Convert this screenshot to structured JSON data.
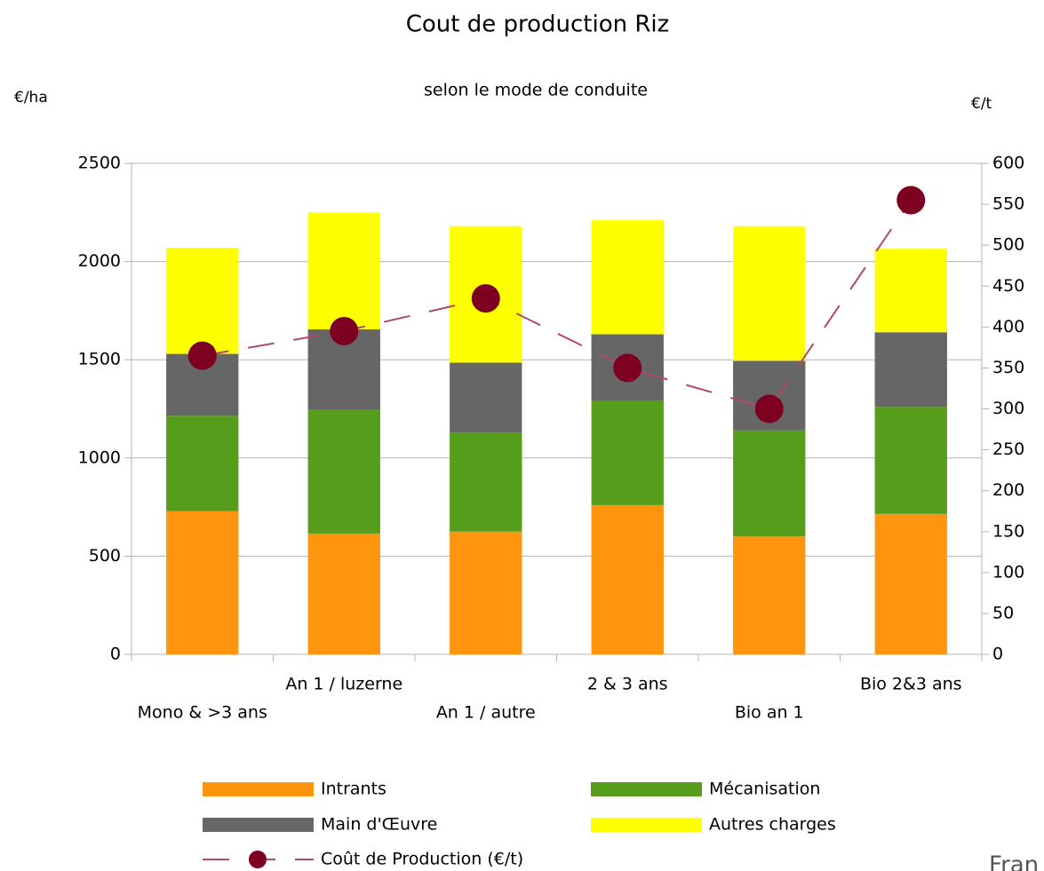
{
  "chart_data": {
    "type": "bar",
    "stacked": true,
    "title": "Cout de production  Riz",
    "subtitle": "selon le mode de conduite",
    "ylabel": "€/ha",
    "y2label": "€/t",
    "categories": [
      "Mono & >3 ans",
      "An 1 / luzerne",
      "An 1 / autre",
      "2 & 3 ans",
      "Bio an 1",
      "Bio 2&3 ans"
    ],
    "series": [
      {
        "name": "Intrants",
        "color": "#ff950e",
        "values": [
          730,
          615,
          625,
          760,
          600,
          715
        ]
      },
      {
        "name": "Mécanisation",
        "color": "#579d1c",
        "values": [
          485,
          630,
          505,
          530,
          540,
          545
        ]
      },
      {
        "name": "Main d'Œuvre",
        "color": "#666666",
        "values": [
          315,
          410,
          355,
          340,
          355,
          380
        ]
      },
      {
        "name": "Autres charges",
        "color": "#ffff00",
        "values": [
          540,
          595,
          695,
          580,
          685,
          425
        ]
      },
      {
        "name": "Coût de Production (€/t)",
        "color": "#7e0021",
        "line_color": "#b04a6a",
        "type": "line",
        "axis": "y2",
        "values": [
          365,
          395,
          435,
          350,
          300,
          555
        ]
      }
    ],
    "ylim": [
      0,
      2500
    ],
    "yticks": [
      0,
      500,
      1000,
      1500,
      2000,
      2500
    ],
    "y2lim": [
      0,
      600
    ],
    "y2ticks": [
      0,
      50,
      100,
      150,
      200,
      250,
      300,
      350,
      400,
      450,
      500,
      550,
      600
    ],
    "grid": true,
    "legend": "bottom"
  },
  "footer": "Fran"
}
